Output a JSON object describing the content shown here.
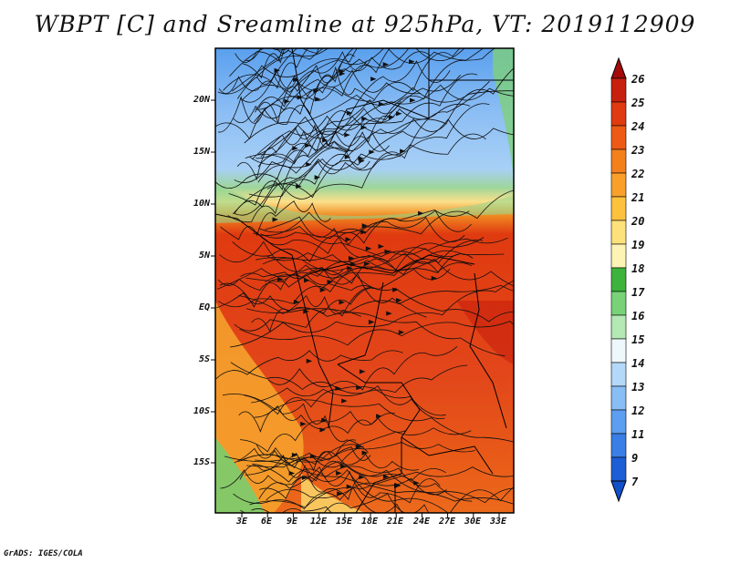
{
  "title": "WBPT [C] and Sreamline at 925hPa, VT: 2019112909",
  "credit": "GrADS: IGES/COLA",
  "map": {
    "lat_ticks": [
      "20N",
      "15N",
      "10N",
      "5N",
      "EQ",
      "5S",
      "10S",
      "15S"
    ],
    "lon_ticks": [
      "3E",
      "6E",
      "9E",
      "12E",
      "15E",
      "18E",
      "21E",
      "24E",
      "27E",
      "30E",
      "33E"
    ]
  },
  "colorbar": {
    "labels": [
      "26",
      "25",
      "24",
      "23",
      "22",
      "21",
      "20",
      "19",
      "18",
      "17",
      "16",
      "15",
      "14",
      "13",
      "12",
      "11",
      "9",
      "7"
    ],
    "colors": [
      "#a50a0a",
      "#c8200e",
      "#e03a10",
      "#ee5a16",
      "#f4801c",
      "#f8a02a",
      "#fcc23e",
      "#fde27c",
      "#fdf3b4",
      "#3cb43c",
      "#78d278",
      "#b4e8b4",
      "#eef8fc",
      "#b4d8f8",
      "#88bef4",
      "#5c9ef0",
      "#3a7ee6",
      "#1c5ed6",
      "#1050c8"
    ]
  }
}
